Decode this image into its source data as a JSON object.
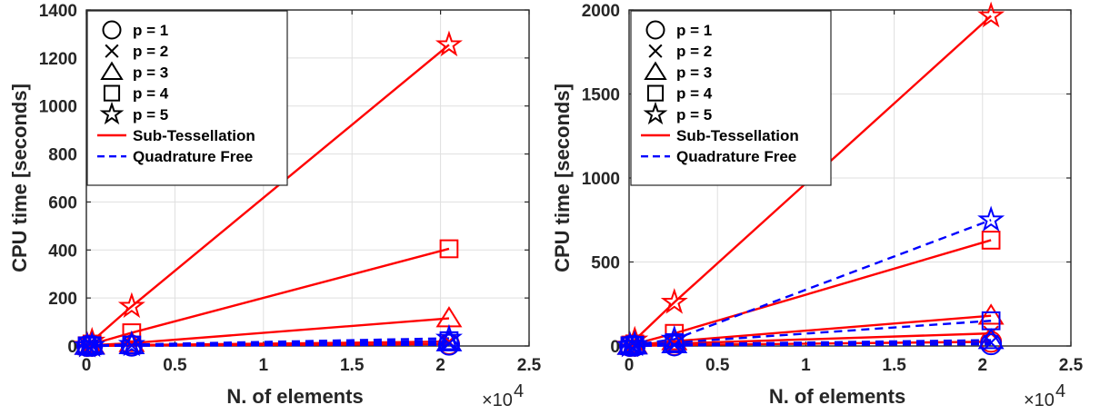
{
  "colors": {
    "sub": "#ff0000",
    "quad": "#0000ff",
    "axis": "#262626",
    "grid": "#dfdfdf"
  },
  "chart_data": [
    {
      "type": "line",
      "xlabel": "N. of elements",
      "ylabel": "CPU time [seconds]",
      "x_multiplier": "×10",
      "x_multiplier_exp": "4",
      "xlim": [
        0,
        25000
      ],
      "ylim": [
        0,
        1400
      ],
      "xticks": [
        0,
        5000,
        10000,
        15000,
        20000,
        25000
      ],
      "xtick_labels": [
        "0",
        "0.5",
        "1",
        "1.5",
        "2",
        "2.5"
      ],
      "yticks": [
        0,
        200,
        400,
        600,
        800,
        1000,
        1200,
        1400
      ],
      "ytick_labels": [
        "0",
        "200",
        "400",
        "600",
        "800",
        "1000",
        "1200",
        "1400"
      ],
      "grid": true,
      "legend_position": "top-left",
      "x": [
        50,
        320,
        2560,
        20480
      ],
      "legend": {
        "markers": [
          {
            "marker": "circle",
            "label": "p = 1"
          },
          {
            "marker": "x",
            "label": "p = 2"
          },
          {
            "marker": "triangle",
            "label": "p = 3"
          },
          {
            "marker": "square",
            "label": "p = 4"
          },
          {
            "marker": "star",
            "label": "p = 5"
          }
        ],
        "lines": [
          {
            "method": "sub",
            "label": "Sub-Tessellation"
          },
          {
            "method": "quad",
            "label": "Quadrature Free"
          }
        ]
      },
      "series": [
        {
          "method": "sub",
          "marker": "circle",
          "values": [
            0.1,
            0.5,
            2,
            8
          ]
        },
        {
          "method": "sub",
          "marker": "x",
          "values": [
            0.2,
            1,
            4,
            18
          ]
        },
        {
          "method": "sub",
          "marker": "triangle",
          "values": [
            0.5,
            3,
            12,
            115
          ]
        },
        {
          "method": "sub",
          "marker": "square",
          "values": [
            1,
            8,
            55,
            405
          ]
        },
        {
          "method": "sub",
          "marker": "star",
          "values": [
            3,
            20,
            165,
            1255
          ]
        },
        {
          "method": "quad",
          "marker": "circle",
          "values": [
            0.05,
            0.2,
            1,
            5
          ]
        },
        {
          "method": "quad",
          "marker": "x",
          "values": [
            0.1,
            0.4,
            2,
            10
          ]
        },
        {
          "method": "quad",
          "marker": "triangle",
          "values": [
            0.1,
            0.6,
            3,
            15
          ]
        },
        {
          "method": "quad",
          "marker": "square",
          "values": [
            0.2,
            1,
            4,
            22
          ]
        },
        {
          "method": "quad",
          "marker": "star",
          "values": [
            0.3,
            2,
            6,
            32
          ]
        }
      ]
    },
    {
      "type": "line",
      "xlabel": "N. of elements",
      "ylabel": "CPU time [seconds]",
      "x_multiplier": "×10",
      "x_multiplier_exp": "4",
      "xlim": [
        0,
        25000
      ],
      "ylim": [
        0,
        2000
      ],
      "xticks": [
        0,
        5000,
        10000,
        15000,
        20000,
        25000
      ],
      "xtick_labels": [
        "0",
        "0.5",
        "1",
        "1.5",
        "2",
        "2.5"
      ],
      "yticks": [
        0,
        500,
        1000,
        1500,
        2000
      ],
      "ytick_labels": [
        "0",
        "500",
        "1000",
        "1500",
        "2000"
      ],
      "grid": true,
      "legend_position": "top-left",
      "x": [
        50,
        320,
        2560,
        20480
      ],
      "legend": {
        "markers": [
          {
            "marker": "circle",
            "label": "p = 1"
          },
          {
            "marker": "x",
            "label": "p = 2"
          },
          {
            "marker": "triangle",
            "label": "p = 3"
          },
          {
            "marker": "square",
            "label": "p = 4"
          },
          {
            "marker": "star",
            "label": "p = 5"
          }
        ],
        "lines": [
          {
            "method": "sub",
            "label": "Sub-Tessellation"
          },
          {
            "method": "quad",
            "label": "Quadrature Free"
          }
        ]
      },
      "series": [
        {
          "method": "sub",
          "marker": "circle",
          "values": [
            0.2,
            1,
            6,
            25
          ]
        },
        {
          "method": "sub",
          "marker": "x",
          "values": [
            0.5,
            3,
            14,
            75
          ]
        },
        {
          "method": "sub",
          "marker": "triangle",
          "values": [
            1,
            6,
            28,
            180
          ]
        },
        {
          "method": "sub",
          "marker": "square",
          "values": [
            2,
            12,
            75,
            630
          ]
        },
        {
          "method": "sub",
          "marker": "star",
          "values": [
            5,
            35,
            260,
            1965
          ]
        },
        {
          "method": "quad",
          "marker": "circle",
          "values": [
            0.1,
            0.5,
            3,
            10
          ]
        },
        {
          "method": "quad",
          "marker": "x",
          "values": [
            0.2,
            1,
            5,
            20
          ]
        },
        {
          "method": "quad",
          "marker": "triangle",
          "values": [
            0.5,
            2,
            10,
            35
          ]
        },
        {
          "method": "quad",
          "marker": "square",
          "values": [
            1,
            4,
            20,
            150
          ]
        },
        {
          "method": "quad",
          "marker": "star",
          "values": [
            2,
            8,
            40,
            750
          ]
        }
      ]
    }
  ]
}
